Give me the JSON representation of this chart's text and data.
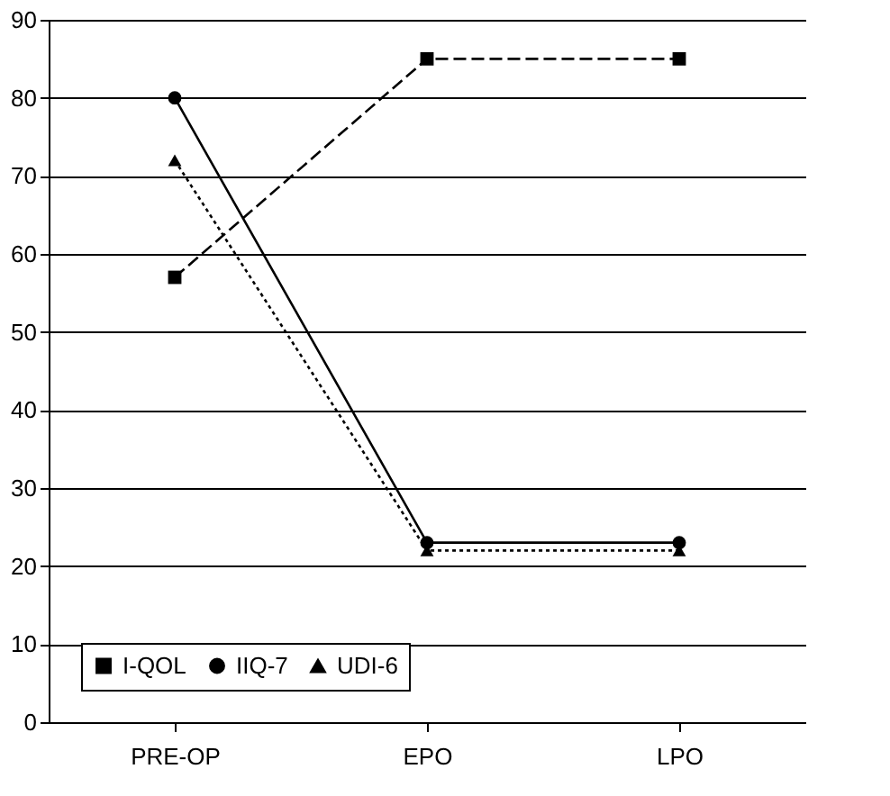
{
  "chart_data": {
    "type": "line",
    "categories": [
      "PRE-OP",
      "EPO",
      "LPO"
    ],
    "series": [
      {
        "name": "I-QOL",
        "color": "#000000",
        "values": [
          57,
          85,
          85
        ],
        "marker": "square",
        "line_style": "dashed"
      },
      {
        "name": "IIQ-7",
        "color": "#000000",
        "values": [
          80,
          23,
          23
        ],
        "marker": "circle",
        "line_style": "solid"
      },
      {
        "name": "UDI-6",
        "color": "#000000",
        "values": [
          72,
          22,
          22
        ],
        "marker": "triangle",
        "line_style": "dotted"
      }
    ],
    "ylim": [
      0,
      90
    ],
    "yticks": [
      0,
      10,
      20,
      30,
      40,
      50,
      60,
      70,
      80,
      90
    ],
    "grid": "y",
    "legend": "bottom"
  }
}
